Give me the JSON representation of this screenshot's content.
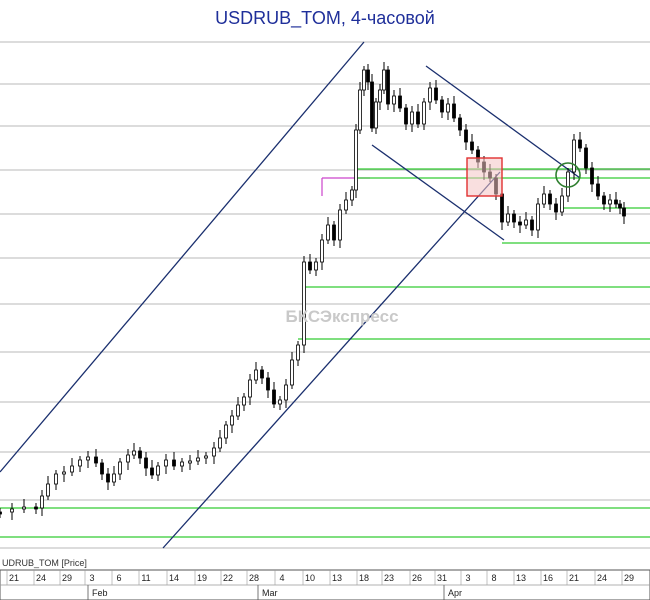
{
  "chart_data": {
    "type": "candlestick",
    "title": "USDRUB_TOM, 4-часовой",
    "watermark": "БКСЭкспресс",
    "series_label": "UDRUB_TOM [Price]",
    "x_ticks": [
      "21",
      "24",
      "29",
      "3",
      "6",
      "11",
      "14",
      "19",
      "22",
      "28",
      "4",
      "10",
      "13",
      "18",
      "23",
      "26",
      "31",
      "3",
      "8",
      "13",
      "16",
      "21",
      "24",
      "29"
    ],
    "month_labels": [
      "Feb",
      "Mar",
      "Apr"
    ],
    "colors": {
      "channel": "#1a2f6e",
      "support": "#33cc33",
      "resistance_pink": "#cc44cc",
      "grid": "#b8b8b8",
      "candle": "#000000",
      "highlight_box": "#e03030",
      "title": "#1f2f9a"
    },
    "annotations": [
      {
        "kind": "ascending-channel"
      },
      {
        "kind": "descending-channel"
      },
      {
        "kind": "horizontal-support-levels",
        "count": 8
      },
      {
        "kind": "box-highlight"
      },
      {
        "kind": "circle-highlight"
      }
    ]
  }
}
